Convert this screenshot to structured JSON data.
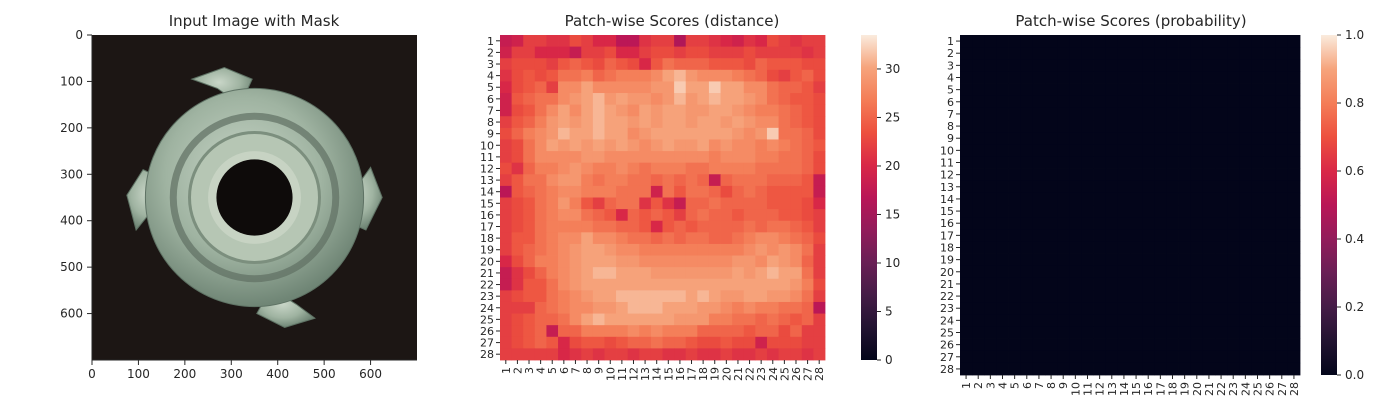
{
  "chart_data": [
    {
      "type": "image",
      "title": "Input Image with Mask",
      "xlim": [
        0,
        700
      ],
      "ylim": [
        700,
        0
      ],
      "xticks": [
        0,
        100,
        200,
        300,
        400,
        500,
        600
      ],
      "yticks": [
        0,
        100,
        200,
        300,
        400,
        500,
        600
      ],
      "image": {
        "description": "metal T-nut with four prongs and a central hole on a dark background",
        "background_color": "#1c1614",
        "metal_color": "#9fb3a1"
      }
    },
    {
      "type": "heatmap",
      "title": "Patch-wise Scores (distance)",
      "rows": 28,
      "cols": 28,
      "x_categories": [
        "1",
        "2",
        "3",
        "4",
        "5",
        "6",
        "7",
        "8",
        "9",
        "10",
        "11",
        "12",
        "13",
        "14",
        "15",
        "16",
        "17",
        "18",
        "19",
        "20",
        "21",
        "22",
        "23",
        "24",
        "25",
        "26",
        "27",
        "28"
      ],
      "y_categories": [
        "1",
        "2",
        "3",
        "4",
        "5",
        "6",
        "7",
        "8",
        "9",
        "10",
        "11",
        "12",
        "13",
        "14",
        "15",
        "16",
        "17",
        "18",
        "19",
        "20",
        "21",
        "22",
        "23",
        "24",
        "25",
        "26",
        "27",
        "28"
      ],
      "colormap": "rocket",
      "colorbar": {
        "min": 0,
        "max": 33.5,
        "ticks": [
          0,
          5,
          10,
          15,
          20,
          25,
          30
        ]
      },
      "values": [
        [
          18,
          19,
          22,
          22,
          21,
          21,
          23,
          22,
          20,
          20,
          17,
          17,
          21,
          22,
          22,
          16,
          22,
          22,
          21,
          20,
          19,
          21,
          20,
          23,
          22,
          21,
          22,
          22
        ],
        [
          19,
          22,
          22,
          20,
          20,
          20,
          18,
          22,
          22,
          23,
          20,
          20,
          22,
          23,
          23,
          22,
          23,
          23,
          22,
          22,
          22,
          23,
          22,
          22,
          22,
          22,
          21,
          22
        ],
        [
          22,
          23,
          23,
          23,
          22,
          24,
          25,
          24,
          23,
          25,
          24,
          23,
          20,
          24,
          26,
          25,
          25,
          25,
          24,
          24,
          24,
          23,
          25,
          24,
          24,
          24,
          23,
          23
        ],
        [
          21,
          23,
          24,
          23,
          24,
          26,
          26,
          27,
          25,
          26,
          27,
          27,
          27,
          28,
          30,
          31,
          29,
          28,
          28,
          28,
          27,
          26,
          25,
          23,
          22,
          24,
          25,
          23
        ],
        [
          20,
          23,
          24,
          25,
          22,
          28,
          28,
          30,
          28,
          28,
          28,
          28,
          28,
          29,
          29,
          32,
          30,
          30,
          32,
          30,
          30,
          28,
          28,
          26,
          25,
          25,
          24,
          22
        ],
        [
          19,
          24,
          25,
          26,
          26,
          28,
          29,
          30,
          31,
          29,
          30,
          29,
          29,
          28,
          29,
          31,
          29,
          30,
          31,
          30,
          30,
          29,
          28,
          26,
          25,
          24,
          24,
          23
        ],
        [
          19,
          23,
          24,
          26,
          28,
          30,
          28,
          30,
          31,
          30,
          29,
          28,
          30,
          29,
          30,
          30,
          29,
          29,
          30,
          30,
          29,
          28,
          27,
          27,
          26,
          25,
          24,
          23
        ],
        [
          22,
          24,
          25,
          27,
          29,
          30,
          29,
          30,
          31,
          30,
          30,
          29,
          30,
          29,
          30,
          30,
          29,
          30,
          30,
          29,
          30,
          29,
          28,
          28,
          26,
          25,
          24,
          23
        ],
        [
          23,
          25,
          27,
          28,
          29,
          31,
          30,
          30,
          31,
          30,
          30,
          28,
          29,
          30,
          30,
          30,
          30,
          30,
          30,
          30,
          29,
          28,
          29,
          32,
          26,
          26,
          25,
          23
        ],
        [
          22,
          23,
          26,
          28,
          30,
          29,
          30,
          29,
          30,
          29,
          30,
          29,
          28,
          29,
          30,
          29,
          29,
          30,
          28,
          29,
          28,
          28,
          27,
          28,
          27,
          26,
          25,
          24
        ],
        [
          22,
          23,
          26,
          28,
          28,
          28,
          28,
          29,
          29,
          28,
          28,
          28,
          28,
          28,
          28,
          28,
          28,
          28,
          27,
          28,
          28,
          28,
          27,
          27,
          26,
          26,
          25,
          23
        ],
        [
          23,
          21,
          25,
          27,
          27,
          28,
          29,
          28,
          27,
          27,
          28,
          27,
          26,
          27,
          27,
          27,
          26,
          26,
          27,
          27,
          27,
          27,
          26,
          26,
          26,
          26,
          25,
          23
        ],
        [
          22,
          24,
          26,
          26,
          28,
          29,
          29,
          27,
          26,
          27,
          27,
          26,
          26,
          25,
          26,
          25,
          26,
          25,
          18,
          25,
          26,
          26,
          26,
          25,
          25,
          25,
          24,
          18
        ],
        [
          17,
          24,
          25,
          26,
          27,
          28,
          28,
          27,
          27,
          27,
          26,
          26,
          26,
          19,
          26,
          24,
          26,
          26,
          25,
          23,
          25,
          26,
          25,
          24,
          24,
          24,
          24,
          18
        ],
        [
          22,
          23,
          24,
          26,
          27,
          29,
          27,
          24,
          22,
          25,
          26,
          26,
          21,
          24,
          21,
          18,
          25,
          25,
          26,
          25,
          25,
          25,
          25,
          24,
          24,
          24,
          23,
          20
        ],
        [
          22,
          23,
          24,
          26,
          27,
          28,
          28,
          26,
          25,
          24,
          20,
          25,
          24,
          25,
          24,
          22,
          25,
          26,
          25,
          25,
          24,
          25,
          25,
          25,
          24,
          24,
          23,
          22
        ],
        [
          22,
          23,
          24,
          26,
          27,
          27,
          27,
          27,
          26,
          26,
          25,
          25,
          24,
          20,
          24,
          25,
          24,
          25,
          25,
          25,
          25,
          26,
          25,
          26,
          26,
          25,
          24,
          22
        ],
        [
          22,
          24,
          24,
          26,
          27,
          28,
          28,
          30,
          28,
          28,
          27,
          26,
          26,
          25,
          26,
          25,
          26,
          26,
          25,
          25,
          26,
          27,
          28,
          28,
          27,
          26,
          25,
          23
        ],
        [
          22,
          24,
          25,
          26,
          27,
          28,
          29,
          30,
          30,
          29,
          28,
          28,
          27,
          27,
          27,
          27,
          27,
          27,
          27,
          27,
          27,
          28,
          29,
          28,
          29,
          28,
          26,
          22
        ],
        [
          20,
          23,
          25,
          27,
          27,
          28,
          29,
          30,
          30,
          30,
          29,
          29,
          28,
          28,
          28,
          28,
          28,
          28,
          28,
          28,
          29,
          29,
          28,
          30,
          29,
          28,
          25,
          22
        ],
        [
          18,
          21,
          23,
          25,
          27,
          28,
          29,
          30,
          31,
          31,
          30,
          30,
          30,
          29,
          29,
          29,
          29,
          29,
          29,
          29,
          30,
          29,
          30,
          31,
          30,
          30,
          26,
          22
        ],
        [
          18,
          21,
          24,
          24,
          26,
          28,
          29,
          30,
          30,
          30,
          30,
          30,
          30,
          30,
          30,
          30,
          30,
          30,
          30,
          30,
          30,
          30,
          30,
          30,
          30,
          29,
          27,
          23
        ],
        [
          22,
          23,
          24,
          24,
          26,
          27,
          28,
          29,
          30,
          30,
          31,
          31,
          31,
          31,
          31,
          31,
          30,
          31,
          30,
          29,
          29,
          30,
          30,
          29,
          29,
          28,
          26,
          22
        ],
        [
          22,
          22,
          22,
          25,
          26,
          27,
          28,
          28,
          29,
          29,
          30,
          31,
          31,
          31,
          30,
          30,
          30,
          29,
          29,
          28,
          27,
          28,
          27,
          27,
          26,
          26,
          25,
          17
        ],
        [
          22,
          23,
          24,
          25,
          25,
          26,
          28,
          30,
          31,
          30,
          30,
          30,
          30,
          30,
          30,
          29,
          29,
          29,
          27,
          27,
          26,
          26,
          25,
          26,
          25,
          24,
          25,
          22
        ],
        [
          22,
          23,
          24,
          25,
          18,
          25,
          25,
          27,
          27,
          27,
          27,
          28,
          27,
          28,
          27,
          27,
          27,
          25,
          25,
          25,
          25,
          24,
          25,
          25,
          23,
          25,
          22,
          22
        ],
        [
          22,
          23,
          24,
          25,
          24,
          20,
          23,
          24,
          24,
          23,
          24,
          25,
          25,
          26,
          25,
          25,
          24,
          23,
          23,
          24,
          23,
          23,
          19,
          23,
          23,
          23,
          22,
          22
        ],
        [
          22,
          22,
          22,
          22,
          22,
          20,
          21,
          22,
          21,
          22,
          22,
          21,
          22,
          22,
          21,
          21,
          22,
          21,
          21,
          22,
          21,
          21,
          22,
          21,
          22,
          22,
          21,
          22
        ]
      ]
    },
    {
      "type": "heatmap",
      "title": "Patch-wise Scores (probability)",
      "rows": 28,
      "cols": 28,
      "x_categories": [
        "1",
        "2",
        "3",
        "4",
        "5",
        "6",
        "7",
        "8",
        "9",
        "10",
        "11",
        "12",
        "13",
        "14",
        "15",
        "16",
        "17",
        "18",
        "19",
        "20",
        "21",
        "22",
        "23",
        "24",
        "25",
        "26",
        "27",
        "28"
      ],
      "y_categories": [
        "1",
        "2",
        "3",
        "4",
        "5",
        "6",
        "7",
        "8",
        "9",
        "10",
        "11",
        "12",
        "13",
        "14",
        "15",
        "16",
        "17",
        "18",
        "19",
        "20",
        "21",
        "22",
        "23",
        "24",
        "25",
        "26",
        "27",
        "28"
      ],
      "colormap": "rocket",
      "colorbar": {
        "min": 0,
        "max": 1.0,
        "ticks": [
          "0.0",
          "0.2",
          "0.4",
          "0.6",
          "0.8",
          "1.0"
        ]
      },
      "fill_value": 0.0
    }
  ]
}
